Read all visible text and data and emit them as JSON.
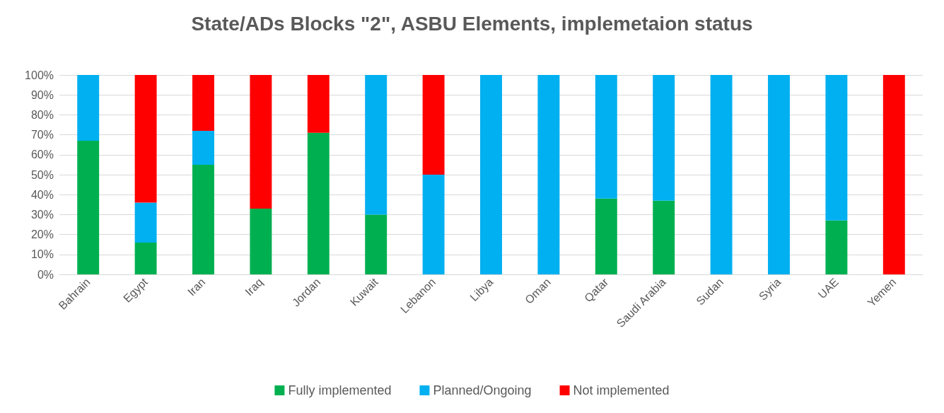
{
  "chart_data": {
    "type": "bar",
    "title": "State/ADs Blocks \"2\", ASBU Elements, implemetaion status",
    "stacked": true,
    "categories": [
      "Bahrain",
      "Egypt",
      "Iran",
      "Iraq",
      "Jordan",
      "Kuwait",
      "Lebanon",
      "Libya",
      "Oman",
      "Qatar",
      "Saudi Arabia",
      "Sudan",
      "Syria",
      "UAE",
      "Yemen"
    ],
    "series": [
      {
        "name": "Fully implemented",
        "color": "#00b050",
        "values": [
          67,
          16,
          55,
          33,
          71,
          30,
          0,
          0,
          0,
          38,
          37,
          0,
          0,
          27,
          0
        ]
      },
      {
        "name": "Planned/Ongoing",
        "color": "#00b0f0",
        "values": [
          33,
          20,
          17,
          0,
          0,
          70,
          50,
          100,
          100,
          62,
          63,
          100,
          100,
          73,
          0
        ]
      },
      {
        "name": "Not implemented",
        "color": "#ff0000",
        "values": [
          0,
          64,
          28,
          67,
          29,
          0,
          50,
          0,
          0,
          0,
          0,
          0,
          0,
          0,
          100
        ]
      }
    ],
    "ylim": [
      0,
      100
    ],
    "yticks": [
      {
        "value": 0,
        "label": "0%"
      },
      {
        "value": 10,
        "label": "10%"
      },
      {
        "value": 20,
        "label": "20%"
      },
      {
        "value": 30,
        "label": "30%"
      },
      {
        "value": 40,
        "label": "40%"
      },
      {
        "value": 50,
        "label": "50%"
      },
      {
        "value": 60,
        "label": "60%"
      },
      {
        "value": 70,
        "label": "70%"
      },
      {
        "value": 80,
        "label": "80%"
      },
      {
        "value": 90,
        "label": "90%"
      },
      {
        "value": 100,
        "label": "100%"
      }
    ],
    "grid": "y",
    "legend": "bottom"
  }
}
